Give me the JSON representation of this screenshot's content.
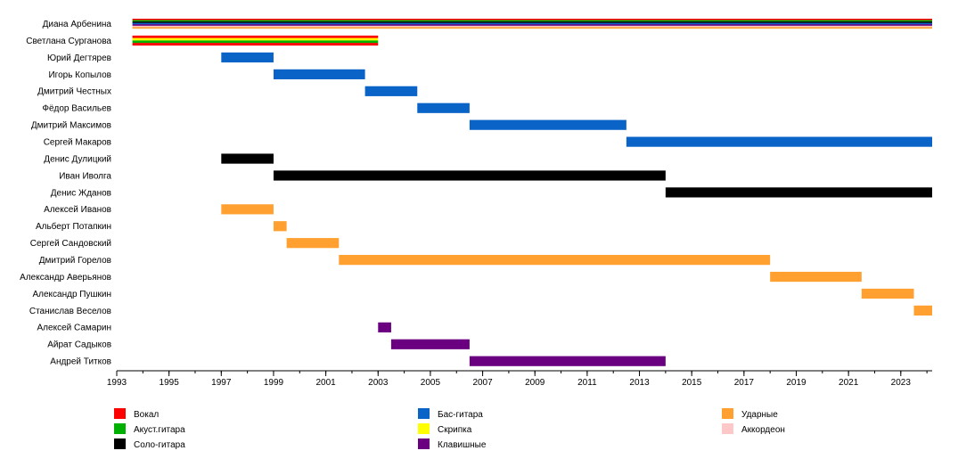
{
  "chart_data": {
    "type": "timeline",
    "title": "",
    "xlabel": "",
    "ylabel": "",
    "xlim": [
      1993.0,
      2024.2
    ],
    "x_ticks": [
      1993,
      1995,
      1997,
      1999,
      2001,
      2003,
      2005,
      2007,
      2009,
      2011,
      2013,
      2015,
      2017,
      2019,
      2021,
      2023
    ],
    "roles": [
      {
        "key": "vocal",
        "name": "Вокал",
        "color": "#ff0000"
      },
      {
        "key": "acoustic",
        "name": "Акуст.гитара",
        "color": "#00b000"
      },
      {
        "key": "lead",
        "name": "Соло-гитара",
        "color": "#000000"
      },
      {
        "key": "bass",
        "name": "Бас-гитара",
        "color": "#0a64c8"
      },
      {
        "key": "violin",
        "name": "Скрипка",
        "color": "#ffff00"
      },
      {
        "key": "keys",
        "name": "Клавишные",
        "color": "#6a0080"
      },
      {
        "key": "drums",
        "name": "Ударные",
        "color": "#ffa030"
      },
      {
        "key": "accordion",
        "name": "Аккордеон",
        "color": "#ffc8c8"
      }
    ],
    "members": [
      {
        "name": "Диана Арбенина",
        "start": 1993.6,
        "end": 2024.2,
        "roles": [
          "vocal",
          "acoustic",
          "lead",
          "bass",
          "keys",
          "accordion",
          "drums"
        ]
      },
      {
        "name": "Светлана Сурганова",
        "start": 1993.6,
        "end": 2003.0,
        "roles": [
          "vocal",
          "violin",
          "acoustic",
          "vocal"
        ]
      },
      {
        "name": "Юрий Дегтярев",
        "start": 1997.0,
        "end": 1999.0,
        "roles": [
          "bass"
        ]
      },
      {
        "name": "Игорь Копылов",
        "start": 1999.0,
        "end": 2002.5,
        "roles": [
          "bass"
        ]
      },
      {
        "name": "Дмитрий Честных",
        "start": 2002.5,
        "end": 2004.5,
        "roles": [
          "bass"
        ]
      },
      {
        "name": "Фёдор Васильев",
        "start": 2004.5,
        "end": 2006.5,
        "roles": [
          "bass"
        ]
      },
      {
        "name": "Дмитрий Максимов",
        "start": 2006.5,
        "end": 2012.5,
        "roles": [
          "bass"
        ]
      },
      {
        "name": "Сергей Макаров",
        "start": 2012.5,
        "end": 2024.2,
        "roles": [
          "bass"
        ]
      },
      {
        "name": "Денис Дулицкий",
        "start": 1997.0,
        "end": 1999.0,
        "roles": [
          "lead"
        ]
      },
      {
        "name": "Иван Иволга",
        "start": 1999.0,
        "end": 2014.0,
        "roles": [
          "lead"
        ]
      },
      {
        "name": "Денис Жданов",
        "start": 2014.0,
        "end": 2024.2,
        "roles": [
          "lead"
        ]
      },
      {
        "name": "Алексей Иванов",
        "start": 1997.0,
        "end": 1999.0,
        "roles": [
          "drums"
        ]
      },
      {
        "name": "Альберт Потапкин",
        "start": 1999.0,
        "end": 1999.5,
        "roles": [
          "drums"
        ]
      },
      {
        "name": "Сергей Сандовский",
        "start": 1999.5,
        "end": 2001.5,
        "roles": [
          "drums"
        ]
      },
      {
        "name": "Дмитрий Горелов",
        "start": 2001.5,
        "end": 2018.0,
        "roles": [
          "drums"
        ]
      },
      {
        "name": "Александр Аверьянов",
        "start": 2018.0,
        "end": 2021.5,
        "roles": [
          "drums"
        ]
      },
      {
        "name": "Александр Пушкин",
        "start": 2021.5,
        "end": 2023.5,
        "roles": [
          "drums"
        ]
      },
      {
        "name": "Станислав Веселов",
        "start": 2023.5,
        "end": 2024.2,
        "roles": [
          "drums"
        ]
      },
      {
        "name": "Алексей Самарин",
        "start": 2003.0,
        "end": 2003.5,
        "roles": [
          "keys"
        ]
      },
      {
        "name": "Айрат Садыков",
        "start": 2003.5,
        "end": 2006.5,
        "roles": [
          "keys"
        ]
      },
      {
        "name": "Андрей Титков",
        "start": 2006.5,
        "end": 2014.0,
        "roles": [
          "keys"
        ]
      }
    ],
    "legend": [
      [
        "vocal",
        "acoustic",
        "lead"
      ],
      [
        "bass",
        "violin",
        "keys"
      ],
      [
        "drums",
        "accordion"
      ]
    ]
  }
}
